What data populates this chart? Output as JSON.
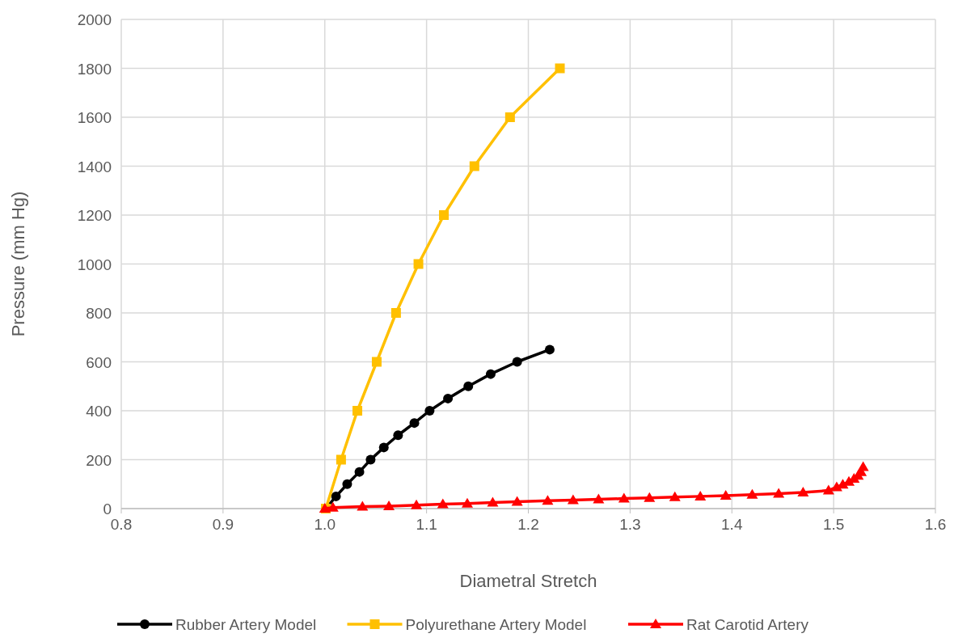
{
  "chart_data": {
    "type": "line",
    "xlabel": "Diametral Stretch",
    "ylabel": "Pressure (mm Hg)",
    "xlim": [
      0.8,
      1.6
    ],
    "xticks": [
      {
        "value": 0.8,
        "label": "0.8"
      },
      {
        "value": 0.9,
        "label": "0.9"
      },
      {
        "value": 1.0,
        "label": "1.0"
      },
      {
        "value": 1.1,
        "label": "1.1"
      },
      {
        "value": 1.2,
        "label": "1.2"
      },
      {
        "value": 1.3,
        "label": "1.3"
      },
      {
        "value": 1.4,
        "label": "1.4"
      },
      {
        "value": 1.5,
        "label": "1.5"
      },
      {
        "value": 1.6,
        "label": "1.6"
      }
    ],
    "ylim": [
      0,
      2000
    ],
    "yticks": [
      0,
      200,
      400,
      600,
      800,
      1000,
      1200,
      1400,
      1600,
      1800,
      2000
    ],
    "grid": true,
    "legend": "bottom",
    "line_style": "solid",
    "series": [
      {
        "name": "Rubber Artery Model",
        "color": "#000000",
        "marker": "circle",
        "x": [
          1.001,
          1.011,
          1.022,
          1.034,
          1.045,
          1.058,
          1.072,
          1.088,
          1.103,
          1.121,
          1.141,
          1.163,
          1.189,
          1.221
        ],
        "values": [
          0,
          50,
          100,
          150,
          200,
          250,
          300,
          350,
          400,
          450,
          500,
          550,
          600,
          650
        ]
      },
      {
        "name": "Polyurethane Artery Model",
        "color": "#ffc000",
        "marker": "square",
        "x": [
          1.001,
          1.016,
          1.032,
          1.051,
          1.07,
          1.092,
          1.117,
          1.147,
          1.182,
          1.231
        ],
        "values": [
          0,
          200,
          400,
          600,
          800,
          1000,
          1200,
          1400,
          1600,
          1800
        ]
      },
      {
        "name": "Rat Carotid Artery",
        "color": "#ff0000",
        "marker": "triangle",
        "x": [
          1.0,
          1.008,
          1.037,
          1.063,
          1.09,
          1.116,
          1.14,
          1.165,
          1.189,
          1.219,
          1.244,
          1.269,
          1.294,
          1.319,
          1.344,
          1.369,
          1.394,
          1.42,
          1.446,
          1.47,
          1.495,
          1.503,
          1.509,
          1.515,
          1.52,
          1.524,
          1.527,
          1.529
        ],
        "values": [
          0,
          4,
          8,
          10,
          14,
          18,
          21,
          25,
          28,
          32,
          35,
          38,
          41,
          44,
          47,
          50,
          53,
          57,
          61,
          66,
          74,
          88,
          98,
          110,
          122,
          135,
          150,
          170
        ]
      }
    ]
  }
}
